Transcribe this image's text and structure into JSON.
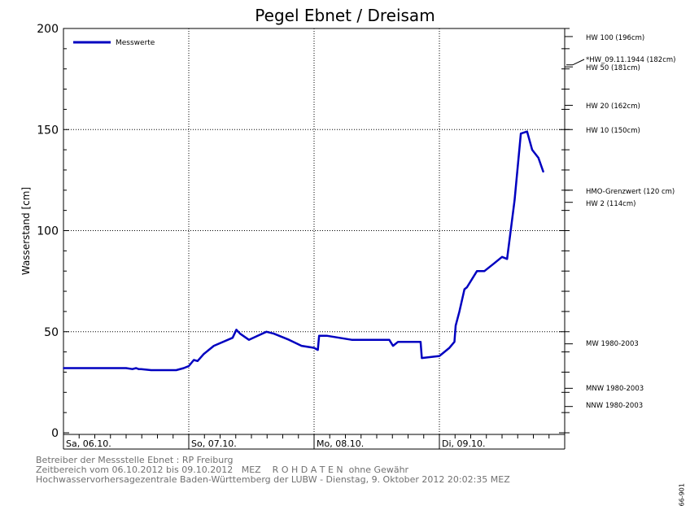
{
  "chart_data": {
    "type": "line",
    "title": "Pegel Ebnet / Dreisam",
    "ylabel": "Wasserstand [cm]",
    "xlabel": "",
    "ylim": [
      0,
      200
    ],
    "yticks": [
      0,
      50,
      100,
      150,
      200
    ],
    "xlim": [
      0,
      4
    ],
    "x_unit": "days since Sa, 06.10. 00:00",
    "day_labels": [
      "Sa, 06.10.",
      "So, 07.10.",
      "Mo, 08.10.",
      "Di, 09.10."
    ],
    "grid": true,
    "legend": {
      "position": "top-left",
      "entries": [
        "Messwerte"
      ]
    },
    "series": [
      {
        "name": "Messwerte",
        "color": "#0000c0",
        "x": [
          0.0,
          0.5,
          0.55,
          0.58,
          0.6,
          0.62,
          0.7,
          0.9,
          0.96,
          1.0,
          1.04,
          1.07,
          1.12,
          1.2,
          1.35,
          1.38,
          1.41,
          1.48,
          1.55,
          1.62,
          1.68,
          1.8,
          1.9,
          2.0,
          2.03,
          2.04,
          2.1,
          2.3,
          2.6,
          2.63,
          2.67,
          2.85,
          2.86,
          3.0,
          3.02,
          3.08,
          3.12,
          3.13,
          3.16,
          3.2,
          3.22,
          3.3,
          3.36,
          3.44,
          3.5,
          3.54,
          3.6,
          3.65,
          3.7,
          3.74,
          3.79,
          3.83
        ],
        "y": [
          32,
          32,
          31.5,
          32,
          31.5,
          31.5,
          31,
          31,
          32,
          33,
          36,
          35.5,
          39,
          43,
          47,
          51,
          49,
          46,
          48,
          50,
          49,
          46,
          43,
          42,
          41,
          48,
          48,
          46,
          46,
          43,
          45,
          45,
          37,
          38,
          39,
          42,
          45,
          53,
          60,
          71,
          72,
          80,
          80,
          84,
          87,
          86,
          115,
          148,
          149,
          140,
          136,
          129
        ]
      }
    ],
    "reference_levels": [
      {
        "label": "HW 100 (196cm)",
        "value": 196
      },
      {
        "label": "*HW_09.11.1944 (182cm)",
        "value": 182,
        "marker": true
      },
      {
        "label": "HW 50 (181cm)",
        "value": 181
      },
      {
        "label": "HW 20 (162cm)",
        "value": 162
      },
      {
        "label": "HW 10 (150cm)",
        "value": 150
      },
      {
        "label": "HMO-Grenzwert (120 cm)",
        "value": 120
      },
      {
        "label": "HW 2 (114cm)",
        "value": 114
      },
      {
        "label": "MW 1980-2003",
        "value": 44
      },
      {
        "label": "MNW 1980-2003",
        "value": 22
      },
      {
        "label": "NNW 1980-2003",
        "value": 13
      }
    ]
  },
  "footer": {
    "line1": "Betreiber der Messstelle Ebnet : RP Freiburg",
    "line2": "Zeitbereich vom 06.10.2012 bis 09.10.2012   MEZ    R O H D A T E N  ohne Gewähr",
    "line3": "Hochwasservorhersagezentrale Baden-Württemberg der LUBW - Dienstag, 9. Oktober 2012 20:02:35 MEZ",
    "code": "66-901"
  }
}
